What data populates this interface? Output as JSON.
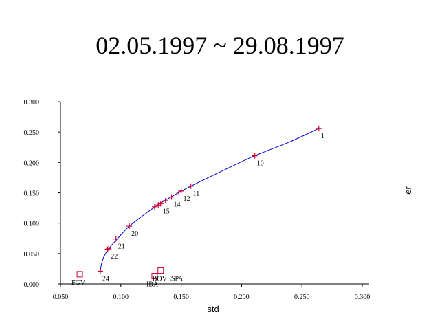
{
  "chart_data": {
    "type": "scatter",
    "title": "02.05.1997 ~ 29.08.1997",
    "xlabel": "std",
    "ylabel": "er",
    "xlim": [
      0.05,
      0.3
    ],
    "ylim": [
      0.0,
      0.3
    ],
    "x_ticks": [
      "0.050",
      "0.100",
      "0.150",
      "0.200",
      "0.250",
      "0.300"
    ],
    "y_ticks": [
      "0.000",
      "0.050",
      "0.100",
      "0.150",
      "0.200",
      "0.250",
      "0.300"
    ],
    "grid": false,
    "colors": {
      "frontier": "#0000cc",
      "portfolio_marker": "#cc0033",
      "index_marker": "#cc0033"
    },
    "frontier": {
      "x": [
        0.264,
        0.24,
        0.211,
        0.185,
        0.158,
        0.145,
        0.132,
        0.12,
        0.107,
        0.097,
        0.09,
        0.086,
        0.084,
        0.083
      ],
      "y": [
        0.256,
        0.234,
        0.211,
        0.187,
        0.161,
        0.147,
        0.132,
        0.115,
        0.095,
        0.074,
        0.058,
        0.045,
        0.033,
        0.021
      ]
    },
    "portfolios": [
      {
        "label": "1",
        "x": 0.264,
        "y": 0.256
      },
      {
        "label": "10",
        "x": 0.211,
        "y": 0.211
      },
      {
        "label": "11",
        "x": 0.158,
        "y": 0.161
      },
      {
        "label": "12",
        "x": 0.15,
        "y": 0.153
      },
      {
        "label": "",
        "x": 0.148,
        "y": 0.151
      },
      {
        "label": "14",
        "x": 0.142,
        "y": 0.143
      },
      {
        "label": "",
        "x": 0.137,
        "y": 0.137
      },
      {
        "label": "15",
        "x": 0.133,
        "y": 0.132
      },
      {
        "label": "",
        "x": 0.131,
        "y": 0.13
      },
      {
        "label": "",
        "x": 0.128,
        "y": 0.127
      },
      {
        "label": "20",
        "x": 0.107,
        "y": 0.095
      },
      {
        "label": "21",
        "x": 0.096,
        "y": 0.074
      },
      {
        "label": "22",
        "x": 0.09,
        "y": 0.058
      },
      {
        "label": "",
        "x": 0.089,
        "y": 0.057
      },
      {
        "label": "24",
        "x": 0.083,
        "y": 0.021
      }
    ],
    "indices": [
      {
        "label": "FGV",
        "x": 0.066,
        "y": 0.016
      },
      {
        "label": "IBA",
        "x": 0.128,
        "y": 0.013
      },
      {
        "label": "BOVESPA",
        "x": 0.133,
        "y": 0.022
      }
    ]
  }
}
